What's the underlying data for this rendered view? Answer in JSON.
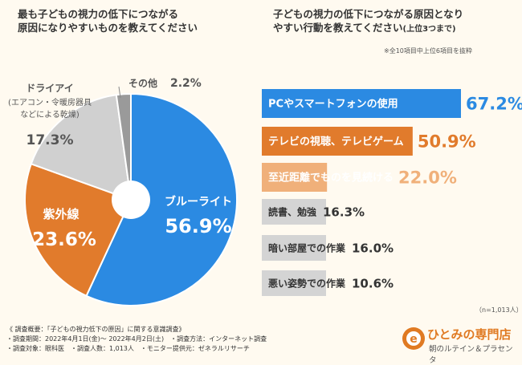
{
  "pie_title": [
    "最も子どもの視力の低下につながる",
    "原因になりやすいものを教えてください"
  ],
  "bar_title": [
    "子どもの視力の低下につながる原因となり",
    "やすい行動を教えてください"
  ],
  "bar_title_suffix": "(上位3つまで)",
  "bar_note": "※全10項目中上位6項目を抜粋",
  "sample_note": "（n=1,013人）",
  "footer": {
    "line1": "《 調査概要：「子どもの視力低下の原因」に関する意識調査》",
    "line2": "・調査期間：2022年4月1日(金)～ 2022年4月2日(土)　・調査方法：インターネット調査",
    "line3": "・調査対象：眼科医　・調査人数：1,013人　・モニター提供元：ゼネラルリサーチ"
  },
  "logo": {
    "name": "ひとみの専門店",
    "sub": "朝のルテイン＆プラセンタ",
    "mark": "e"
  },
  "colors": {
    "blue": "#2b8ae2",
    "orange": "#e17b2c",
    "light_orange": "#f0b07a",
    "gray": "#cfcfcf",
    "dark_gray": "#9a9a9a",
    "background": "#fffaf0"
  },
  "chart_data": [
    {
      "type": "pie",
      "style": "donut",
      "slices": [
        {
          "label": "ブルーライト",
          "value": 56.9,
          "display": "56.9%",
          "color": "#2b8ae2"
        },
        {
          "label": "紫外線",
          "value": 23.6,
          "display": "23.6%",
          "color": "#e17b2c"
        },
        {
          "label": "ドライアイ(エアコン・令暖房器具などによる乾燥)",
          "label_lines": [
            "ドライアイ",
            "(エアコン・令暖房器具",
            "などによる乾燥)"
          ],
          "value": 17.3,
          "display": "17.3%",
          "color": "#d0d0d0"
        },
        {
          "label": "その他",
          "value": 2.2,
          "display": "2.2%",
          "color": "#9a9a9a"
        }
      ]
    },
    {
      "type": "bar",
      "orientation": "horizontal",
      "categories": [
        "PCやスマートフォンの使用",
        "テレビの視聴、テレビゲーム",
        "至近距離でものを見続ける",
        "読書、勉強",
        "暗い部屋での作業",
        "悪い姿勢での作業"
      ],
      "values": [
        67.2,
        50.9,
        22.0,
        16.3,
        16.0,
        10.6
      ],
      "display": [
        "67.2%",
        "50.9%",
        "22.0%",
        "16.3%",
        "16.0%",
        "10.6%"
      ],
      "colors": [
        "#2b8ae2",
        "#e17b2c",
        "#f0b07a",
        "#d4d4d4",
        "#d4d4d4",
        "#d4d4d4"
      ],
      "label_colors": [
        "#ffffff",
        "#ffffff",
        "#ffffff",
        "#333333",
        "#333333",
        "#333333"
      ],
      "value_colors": [
        "#2b8ae2",
        "#e17b2c",
        "#f0b07a",
        "#333333",
        "#333333",
        "#333333"
      ]
    }
  ]
}
